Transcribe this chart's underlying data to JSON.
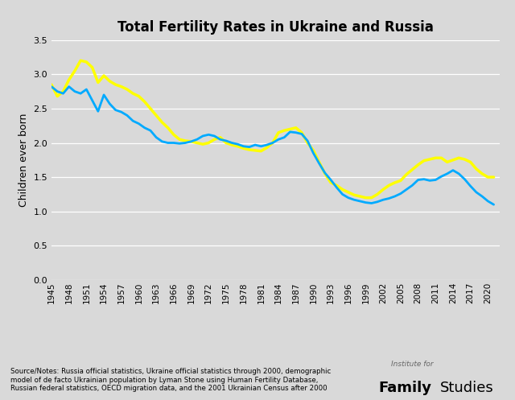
{
  "title": "Total Fertility Rates in Ukraine and Russia",
  "ylabel": "Children ever born",
  "background_color": "#d9d9d9",
  "ukraine_color": "#00aaff",
  "russia_color": "#ffff00",
  "ukraine_linewidth": 2.0,
  "russia_linewidth": 2.5,
  "ylim": [
    0,
    3.5
  ],
  "yticks": [
    0,
    0.5,
    1,
    1.5,
    2,
    2.5,
    3,
    3.5
  ],
  "footnote": "Source/Notes: Russia official statistics, Ukraine official statistics through 2000, demographic\nmodel of de facto Ukrainian population by Lyman Stone using Human Fertility Database,\nRussian federal statistics, OECD migration data, and the 2001 Ukrainian Census after 2000",
  "ukraine_data": {
    "years": [
      1945,
      1946,
      1947,
      1948,
      1949,
      1950,
      1951,
      1952,
      1953,
      1954,
      1955,
      1956,
      1957,
      1958,
      1959,
      1960,
      1961,
      1962,
      1963,
      1964,
      1965,
      1966,
      1967,
      1968,
      1969,
      1970,
      1971,
      1972,
      1973,
      1974,
      1975,
      1976,
      1977,
      1978,
      1979,
      1980,
      1981,
      1982,
      1983,
      1984,
      1985,
      1986,
      1987,
      1988,
      1989,
      1990,
      1991,
      1992,
      1993,
      1994,
      1995,
      1996,
      1997,
      1998,
      1999,
      2000,
      2001,
      2002,
      2003,
      2004,
      2005,
      2006,
      2007,
      2008,
      2009,
      2010,
      2011,
      2012,
      2013,
      2014,
      2015,
      2016,
      2017,
      2018,
      2019,
      2020,
      2021
    ],
    "values": [
      2.82,
      2.75,
      2.72,
      2.82,
      2.75,
      2.72,
      2.78,
      2.62,
      2.46,
      2.7,
      2.57,
      2.48,
      2.45,
      2.4,
      2.32,
      2.28,
      2.22,
      2.18,
      2.08,
      2.02,
      2.0,
      2.0,
      1.99,
      2.0,
      2.02,
      2.05,
      2.1,
      2.12,
      2.1,
      2.05,
      2.03,
      2.0,
      1.98,
      1.95,
      1.94,
      1.97,
      1.95,
      1.97,
      2.0,
      2.05,
      2.08,
      2.16,
      2.15,
      2.13,
      2.03,
      1.85,
      1.7,
      1.56,
      1.46,
      1.35,
      1.25,
      1.2,
      1.17,
      1.15,
      1.13,
      1.12,
      1.14,
      1.17,
      1.19,
      1.22,
      1.26,
      1.32,
      1.38,
      1.46,
      1.47,
      1.45,
      1.46,
      1.51,
      1.55,
      1.6,
      1.55,
      1.47,
      1.37,
      1.28,
      1.22,
      1.15,
      1.1
    ]
  },
  "russia_data": {
    "years": [
      1945,
      1946,
      1947,
      1948,
      1949,
      1950,
      1951,
      1952,
      1953,
      1954,
      1955,
      1956,
      1957,
      1958,
      1959,
      1960,
      1961,
      1962,
      1963,
      1964,
      1965,
      1966,
      1967,
      1968,
      1969,
      1970,
      1971,
      1972,
      1973,
      1974,
      1975,
      1976,
      1977,
      1978,
      1979,
      1980,
      1981,
      1982,
      1983,
      1984,
      1985,
      1986,
      1987,
      1988,
      1989,
      1990,
      1991,
      1992,
      1993,
      1994,
      1995,
      1996,
      1997,
      1998,
      1999,
      2000,
      2001,
      2002,
      2003,
      2004,
      2005,
      2006,
      2007,
      2008,
      2009,
      2010,
      2011,
      2012,
      2013,
      2014,
      2015,
      2016,
      2017,
      2018,
      2019,
      2020,
      2021
    ],
    "values": [
      2.85,
      2.68,
      2.75,
      2.92,
      3.05,
      3.2,
      3.18,
      3.1,
      2.88,
      2.98,
      2.9,
      2.85,
      2.82,
      2.78,
      2.72,
      2.68,
      2.6,
      2.5,
      2.4,
      2.3,
      2.22,
      2.12,
      2.05,
      2.03,
      2.02,
      2.0,
      1.98,
      2.0,
      2.05,
      2.08,
      2.0,
      1.97,
      1.95,
      1.92,
      1.9,
      1.89,
      1.88,
      1.93,
      2.0,
      2.15,
      2.18,
      2.2,
      2.22,
      2.15,
      2.0,
      1.89,
      1.72,
      1.55,
      1.42,
      1.38,
      1.32,
      1.28,
      1.24,
      1.22,
      1.2,
      1.2,
      1.25,
      1.32,
      1.38,
      1.42,
      1.45,
      1.54,
      1.61,
      1.68,
      1.74,
      1.76,
      1.78,
      1.78,
      1.72,
      1.75,
      1.78,
      1.76,
      1.72,
      1.62,
      1.55,
      1.5,
      1.5
    ]
  }
}
